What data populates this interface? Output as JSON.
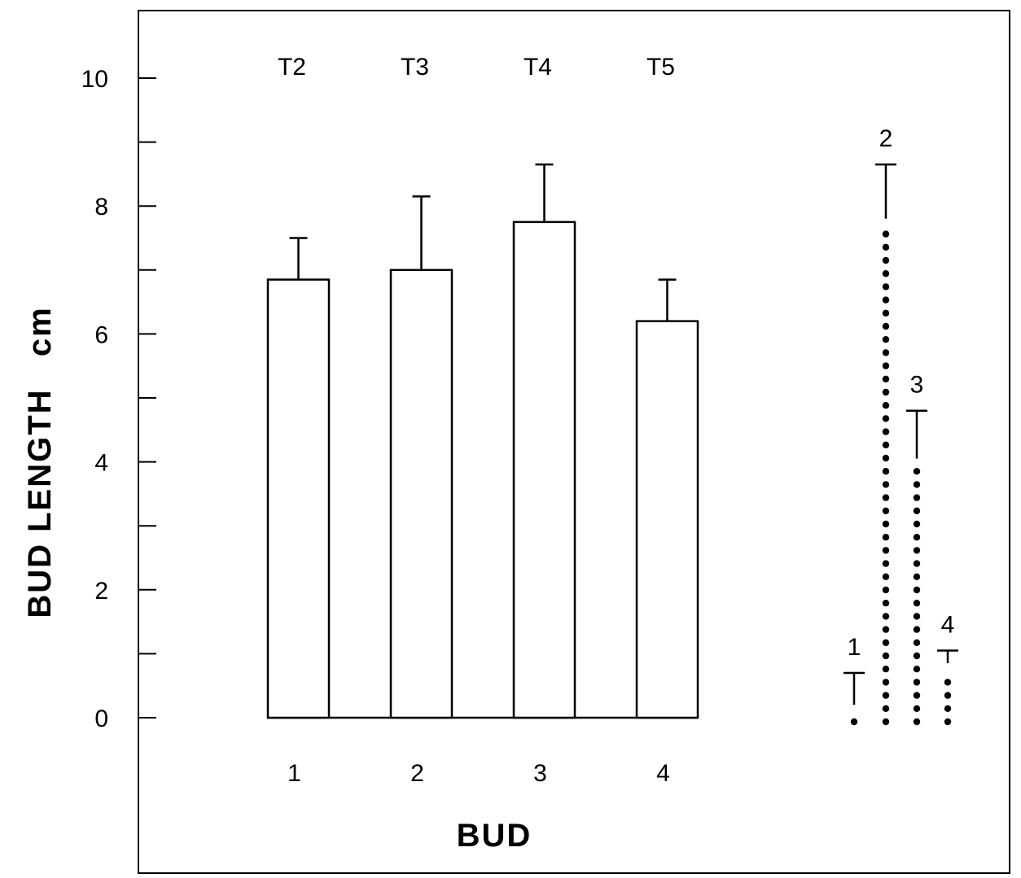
{
  "chart_data": {
    "type": "bar",
    "title": "",
    "xlabel": "BUD",
    "ylabel": "BUD LENGTH   cm",
    "ylim": [
      -1,
      11
    ],
    "yticks_labeled": [
      0,
      2,
      4,
      6,
      8,
      10
    ],
    "yticks_minor": [
      1,
      3,
      5,
      7,
      9
    ],
    "categories": [
      "1",
      "2",
      "3",
      "4"
    ],
    "treatments": [
      "T2",
      "T3",
      "T4",
      "T5"
    ],
    "values": [
      6.85,
      7.0,
      7.75,
      6.2
    ],
    "errors": [
      0.65,
      1.15,
      0.9,
      0.65
    ],
    "grid": false,
    "inset": {
      "type": "dot-column",
      "series": [
        {
          "label": "1",
          "value": 0.1,
          "error": 0.6
        },
        {
          "label": "2",
          "value": 7.7,
          "error": 0.95
        },
        {
          "label": "3",
          "value": 3.95,
          "error": 0.85
        },
        {
          "label": "4",
          "value": 0.75,
          "error": 0.3
        }
      ]
    }
  }
}
